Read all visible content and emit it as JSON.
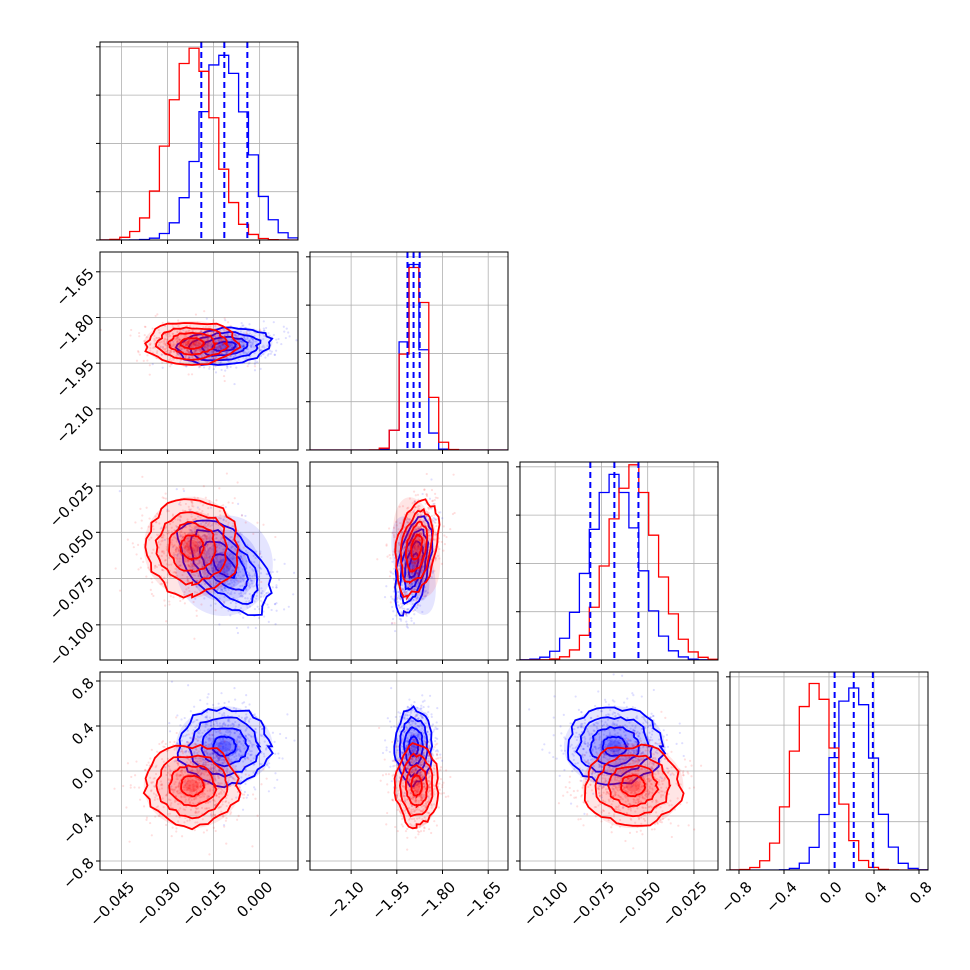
{
  "chart_data": {
    "type": "corner",
    "colors": {
      "series_a": "#0000ff",
      "series_b": "#ff0000"
    },
    "grid": true,
    "series": [
      {
        "color": "#0000ff",
        "means": [
          -0.0115,
          -1.895,
          -0.068,
          0.22
        ],
        "stds": [
          0.0075,
          0.03,
          0.013,
          0.17
        ],
        "quantiles": [
          [
            -0.019,
            -0.0115,
            -0.004
          ],
          [
            -1.915,
            -1.895,
            -1.875
          ],
          [
            -0.081,
            -0.068,
            -0.055
          ],
          [
            0.05,
            0.22,
            0.39
          ]
        ]
      },
      {
        "color": "#ff0000",
        "means": [
          -0.022,
          -1.885,
          -0.058,
          -0.13
        ],
        "stds": [
          0.0075,
          0.035,
          0.013,
          0.18
        ]
      }
    ],
    "blue_correlations": [
      {
        "pair": [
          0,
          1
        ],
        "rho": 0.2
      },
      {
        "pair": [
          0,
          2
        ],
        "rho": -0.55
      },
      {
        "pair": [
          1,
          2
        ],
        "rho": 0.5
      }
    ],
    "red_correlations": [
      {
        "pair": [
          1,
          2
        ],
        "rho": 0.35
      }
    ],
    "axes": [
      {
        "range": [
          -0.052,
          0.0125
        ],
        "ticks": [
          -0.045,
          -0.03,
          -0.015,
          0.0
        ],
        "tick_labels": [
          "−0.045",
          "−0.030",
          "−0.015",
          "0.000"
        ]
      },
      {
        "range": [
          -2.235,
          -1.585
        ],
        "ticks": [
          -2.1,
          -1.95,
          -1.8,
          -1.65
        ],
        "tick_labels": [
          "−2.10",
          "−1.95",
          "−1.80",
          "−1.65"
        ]
      },
      {
        "range": [
          -0.119,
          -0.012
        ],
        "ticks": [
          -0.1,
          -0.075,
          -0.05,
          -0.025
        ],
        "tick_labels": [
          "−0.100",
          "−0.075",
          "−0.050",
          "−0.025"
        ]
      },
      {
        "range": [
          -0.88,
          0.88
        ],
        "ticks": [
          -0.8,
          -0.4,
          0.0,
          0.4,
          0.8
        ],
        "tick_labels": [
          "−0.8",
          "−0.4",
          "0.0",
          "0.4",
          "0.8"
        ]
      }
    ],
    "hist_bins": 20
  }
}
